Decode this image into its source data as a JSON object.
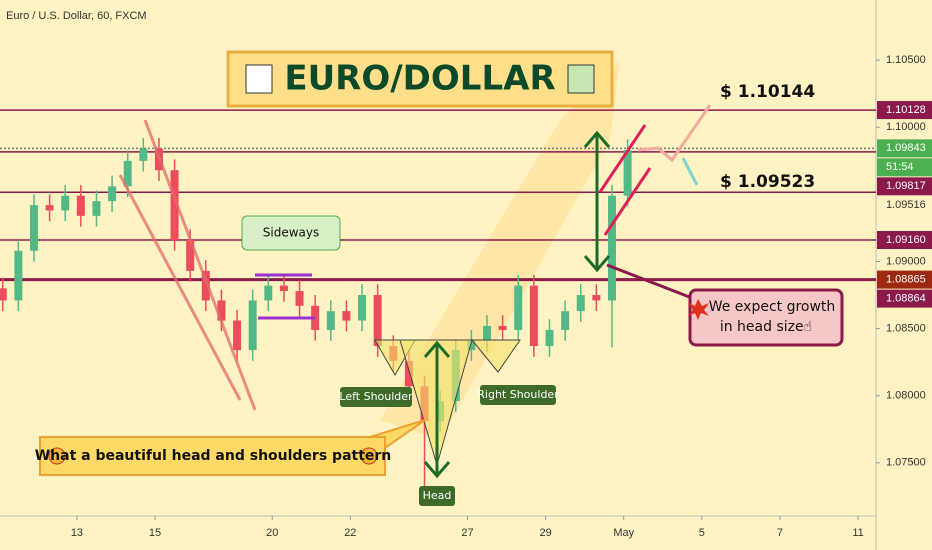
{
  "chart_data": {
    "type": "candlestick",
    "title": "Euro / U.S. Dollar, 60, FXCM",
    "x": [
      -1.9,
      -1.5,
      -1.1,
      -0.7,
      -0.3,
      0.1,
      0.5,
      0.9,
      1.3,
      1.7,
      2.1,
      2.5,
      2.9,
      3.3,
      3.7,
      4.1,
      4.5,
      4.9,
      5.3,
      5.7,
      6.1,
      6.5,
      6.9,
      7.3,
      7.7,
      8.1,
      8.5,
      8.9,
      9.3,
      9.7,
      10.1,
      10.5,
      10.9,
      11.3,
      11.7,
      12.1,
      12.5,
      12.9,
      13.3,
      13.7,
      14.1
    ],
    "open": [
      1.088,
      1.0871,
      1.0908,
      1.0942,
      1.0938,
      1.0949,
      1.0934,
      1.0945,
      1.0956,
      1.0975,
      1.0984,
      1.0968,
      1.0916,
      1.0893,
      1.0871,
      1.0856,
      1.0834,
      1.0871,
      1.0882,
      1.0878,
      1.0867,
      1.0849,
      1.0863,
      1.0856,
      1.0875,
      1.0837,
      1.0826,
      1.0807,
      1.0781,
      1.0796,
      1.0834,
      1.0841,
      1.0852,
      1.0849,
      1.0882,
      1.0837,
      1.0849,
      1.0863,
      1.0875,
      1.0871,
      1.0949
    ],
    "high": [
      1.0888,
      1.0916,
      1.095,
      1.095,
      1.0957,
      1.0957,
      1.0953,
      1.0964,
      1.0983,
      1.0992,
      1.0992,
      1.0976,
      1.0924,
      1.0901,
      1.0879,
      1.0864,
      1.0879,
      1.089,
      1.089,
      1.0886,
      1.0875,
      1.0871,
      1.0871,
      1.0883,
      1.0883,
      1.0845,
      1.0834,
      1.0815,
      1.0804,
      1.0842,
      1.0849,
      1.086,
      1.086,
      1.089,
      1.089,
      1.0857,
      1.0871,
      1.0883,
      1.0883,
      1.0957,
      1.0991
    ],
    "low": [
      1.0863,
      1.0863,
      1.09,
      1.093,
      1.093,
      1.0926,
      1.0926,
      1.0937,
      1.0948,
      1.0967,
      1.096,
      1.0908,
      1.0885,
      1.0863,
      1.0848,
      1.0826,
      1.0826,
      1.0863,
      1.087,
      1.0859,
      1.0841,
      1.0841,
      1.0848,
      1.0848,
      1.0829,
      1.0818,
      1.0799,
      1.0732,
      1.0773,
      1.0788,
      1.0826,
      1.0833,
      1.0841,
      1.0841,
      1.0829,
      1.0829,
      1.0841,
      1.0855,
      1.0863,
      1.0836,
      1.0941
    ],
    "close": [
      1.0871,
      1.0908,
      1.0942,
      1.0938,
      1.0949,
      1.0934,
      1.0945,
      1.0956,
      1.0975,
      1.0984,
      1.0968,
      1.0916,
      1.0893,
      1.0871,
      1.0856,
      1.0834,
      1.0871,
      1.0882,
      1.0878,
      1.0867,
      1.0849,
      1.0863,
      1.0856,
      1.0875,
      1.0837,
      1.0826,
      1.0807,
      1.0781,
      1.0796,
      1.0834,
      1.0841,
      1.0852,
      1.0849,
      1.0882,
      1.0837,
      1.0849,
      1.0863,
      1.0875,
      1.0871,
      1.0949,
      1.0983
    ],
    "up_color": "#53b987",
    "down_color": "#eb4d5c",
    "xlim": [
      -1.97,
      20.46
    ],
    "xticks": [
      {
        "value": 0,
        "label": "13"
      },
      {
        "value": 2,
        "label": "15"
      },
      {
        "value": 5,
        "label": "20"
      },
      {
        "value": 7,
        "label": "22"
      },
      {
        "value": 10,
        "label": "27"
      },
      {
        "value": 12,
        "label": "29"
      },
      {
        "value": 14,
        "label": "May"
      },
      {
        "value": 16,
        "label": "5"
      },
      {
        "value": 18,
        "label": "7"
      },
      {
        "value": 20,
        "label": "11"
      }
    ],
    "ylim": [
      1.07104,
      1.10948
    ],
    "yticks": [
      {
        "value": 1.105,
        "label": "1.10500"
      },
      {
        "value": 1.1,
        "label": "1.10000"
      },
      {
        "value": 1.09,
        "label": "1.09000"
      },
      {
        "value": 1.085,
        "label": "1.08500"
      },
      {
        "value": 1.08,
        "label": "1.08000"
      },
      {
        "value": 1.075,
        "label": "1.07500"
      }
    ],
    "grid": false,
    "price_badges": [
      {
        "value": 1.10128,
        "label": "1.10128",
        "fill": "#8b1a4a",
        "line": "solid"
      },
      {
        "value": 1.09843,
        "label": "1.09843",
        "fill": "#4caf50",
        "line": "dotted"
      },
      {
        "value": 1.09817,
        "label": "1.09817",
        "fill": "#8b1a4a",
        "line": "solid"
      },
      {
        "value": 1.09516,
        "label": "1.09516",
        "line": "solid"
      },
      {
        "value": 1.0916,
        "label": "1.09160",
        "fill": "#8b1a4a",
        "line": "solid"
      },
      {
        "value": 1.08865,
        "label": "1.08865",
        "fill": "#9b2a10",
        "line": "thick"
      },
      {
        "value": 1.08864,
        "label": "1.08864",
        "fill": "#8b1a4a"
      }
    ],
    "countdown": "51:54",
    "annotations": {
      "headline": "EURO/DOLLAR",
      "target_high": "$ 1.10144",
      "target_mid": "$ 1.09523",
      "sideways": "Sideways",
      "expect_1": "We expect growth",
      "expect_2": "in head size☝",
      "pattern": "What a beautiful head and shoulders pattern",
      "left_shoulder": "Left Shoulder",
      "right_shoulder": "Right Shoulder",
      "head": "Head"
    }
  }
}
